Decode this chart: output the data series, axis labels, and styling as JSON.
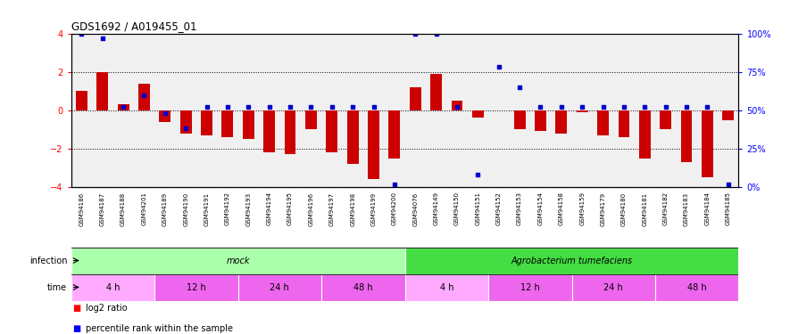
{
  "title": "GDS1692 / A019455_01",
  "samples": [
    "GSM94186",
    "GSM94187",
    "GSM94188",
    "GSM94201",
    "GSM94189",
    "GSM94190",
    "GSM94191",
    "GSM94192",
    "GSM94193",
    "GSM94194",
    "GSM94195",
    "GSM94196",
    "GSM94197",
    "GSM94198",
    "GSM94199",
    "GSM94200",
    "GSM94076",
    "GSM94149",
    "GSM94150",
    "GSM94151",
    "GSM94152",
    "GSM94153",
    "GSM94154",
    "GSM94158",
    "GSM94159",
    "GSM94179",
    "GSM94180",
    "GSM94181",
    "GSM94182",
    "GSM94183",
    "GSM94184",
    "GSM94185"
  ],
  "log2_ratio": [
    1.0,
    2.0,
    0.3,
    1.4,
    -0.6,
    -1.2,
    -1.3,
    -1.4,
    -1.5,
    -2.2,
    -2.3,
    -1.0,
    -2.2,
    -2.8,
    -3.6,
    -2.5,
    1.2,
    1.9,
    0.5,
    -0.4,
    0.0,
    -1.0,
    -1.1,
    -1.2,
    -0.1,
    -1.3,
    -1.4,
    -2.5,
    -1.0,
    -2.7,
    -3.5,
    -0.5
  ],
  "percentile_rank": [
    100,
    97,
    52,
    60,
    48,
    38,
    52,
    52,
    52,
    52,
    52,
    52,
    52,
    52,
    52,
    2,
    100,
    100,
    52,
    8,
    78,
    65,
    52,
    52,
    52,
    52,
    52,
    52,
    52,
    52,
    52,
    2
  ],
  "ylim": [
    -4,
    4
  ],
  "yticks_left": [
    -4,
    -2,
    0,
    2,
    4
  ],
  "yticks_right": [
    0,
    25,
    50,
    75,
    100
  ],
  "ytick_right_labels": [
    "0%",
    "25%",
    "50%",
    "75%",
    "100%"
  ],
  "hlines": [
    -2,
    0,
    2
  ],
  "infection_groups": [
    {
      "label": "mock",
      "start": 0,
      "end": 16,
      "color": "#AAFFAA"
    },
    {
      "label": "Agrobacterium tumefaciens",
      "start": 16,
      "end": 32,
      "color": "#44DD44"
    }
  ],
  "time_groups": [
    {
      "label": "4 h",
      "start": 0,
      "end": 4,
      "color": "#FFAAFF"
    },
    {
      "label": "12 h",
      "start": 4,
      "end": 8,
      "color": "#EE66EE"
    },
    {
      "label": "24 h",
      "start": 8,
      "end": 12,
      "color": "#EE66EE"
    },
    {
      "label": "48 h",
      "start": 12,
      "end": 16,
      "color": "#EE66EE"
    },
    {
      "label": "4 h",
      "start": 16,
      "end": 20,
      "color": "#FFAAFF"
    },
    {
      "label": "12 h",
      "start": 20,
      "end": 24,
      "color": "#EE66EE"
    },
    {
      "label": "24 h",
      "start": 24,
      "end": 28,
      "color": "#EE66EE"
    },
    {
      "label": "48 h",
      "start": 28,
      "end": 32,
      "color": "#EE66EE"
    }
  ],
  "bar_color": "#CC0000",
  "scatter_color": "#0000CC",
  "xtick_bg": "#C8C8C8",
  "plot_bg": "#F0F0F0"
}
